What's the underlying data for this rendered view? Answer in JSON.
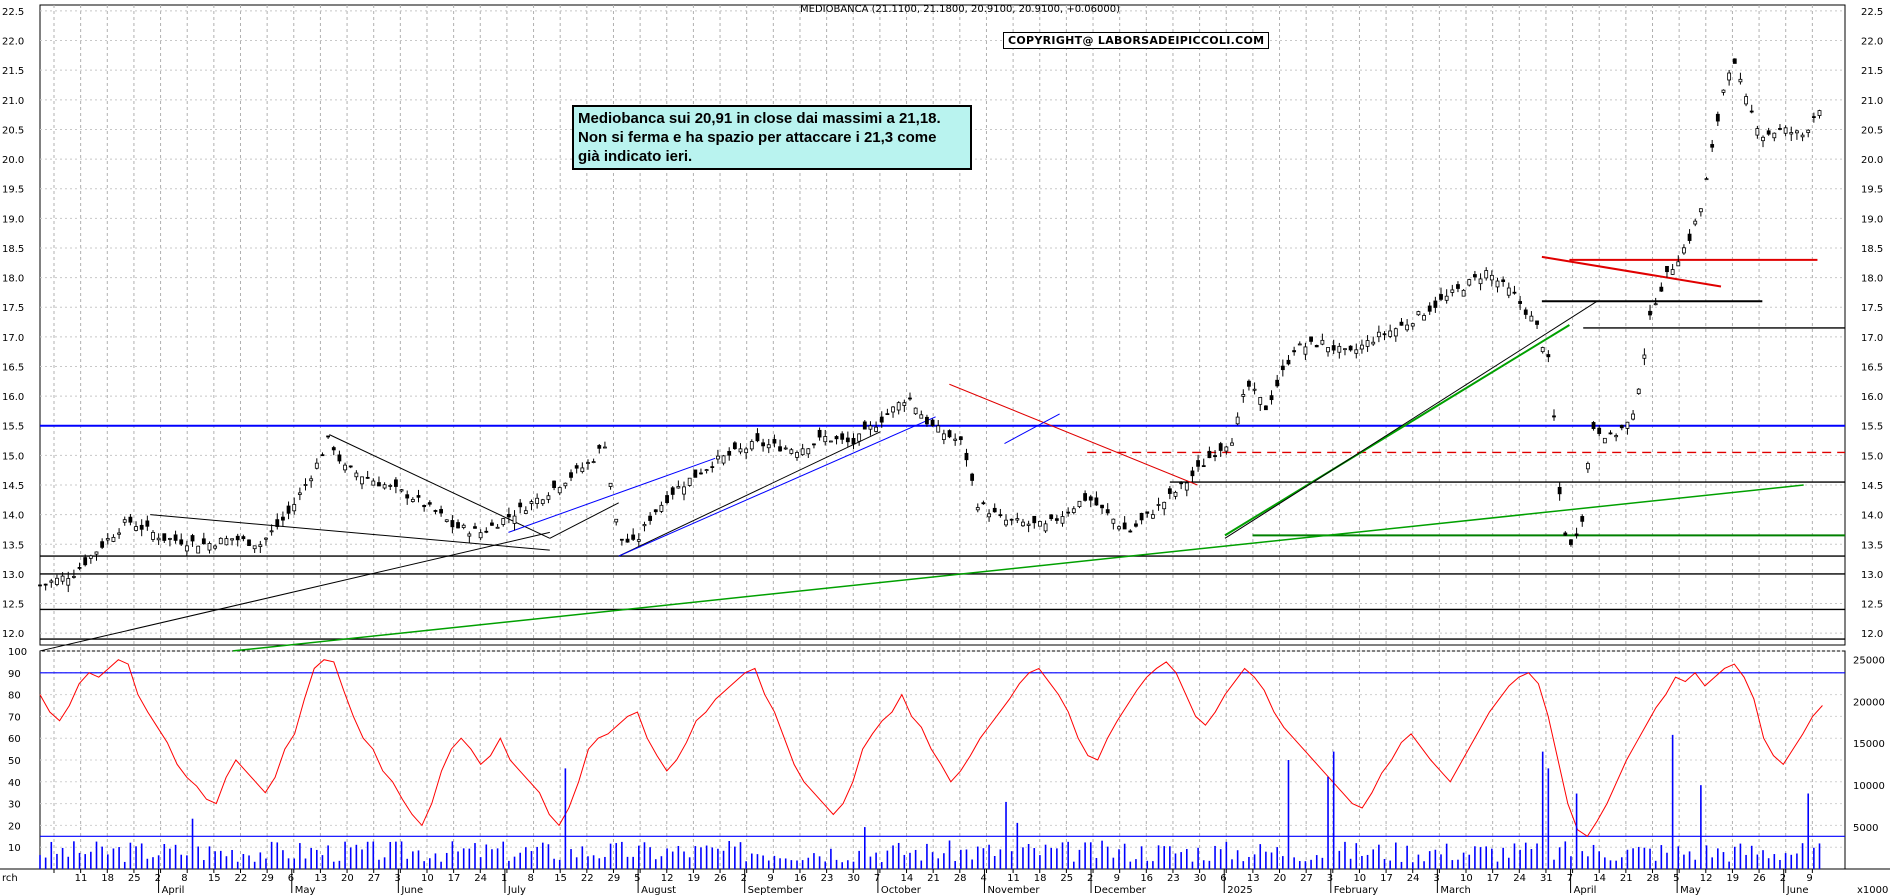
{
  "header": {
    "quote_line": "MEDIOBANCA (21.1100, 21.1800, 20.9100, 20.9100, +0.06000)",
    "copyright": "COPYRIGHT@ LABORSADEIPICCOLI.COM"
  },
  "annotation": {
    "text": "Mediobanca sui 20,91 in close dai massimi a 21,18.\nNon si ferma e ha spazio per attaccare i 21,3 come\ngià indicato ieri."
  },
  "chart_data": [
    {
      "type": "candlestick",
      "panel": "price",
      "title": "MEDIOBANCA (21.1100, 21.1800, 20.9100, 20.9100, +0.06000)",
      "ylim": [
        11.8,
        22.6
      ],
      "y_ticks": [
        "12.0",
        "12.5",
        "13.0",
        "13.5",
        "14.0",
        "14.5",
        "15.0",
        "15.5",
        "16.0",
        "16.5",
        "17.0",
        "17.5",
        "18.0",
        "18.5",
        "19.0",
        "19.5",
        "20.0",
        "20.5",
        "21.0",
        "21.5",
        "22.0",
        "22.5"
      ],
      "x_range_days": [
        0,
        447
      ],
      "close_path": [
        [
          0,
          12.8
        ],
        [
          12,
          13.0
        ],
        [
          25,
          13.6
        ],
        [
          32,
          13.9
        ],
        [
          45,
          13.6
        ],
        [
          60,
          13.5
        ],
        [
          70,
          13.6
        ],
        [
          80,
          13.5
        ],
        [
          90,
          14.0
        ],
        [
          100,
          14.8
        ],
        [
          105,
          15.3
        ],
        [
          110,
          14.8
        ],
        [
          125,
          14.5
        ],
        [
          135,
          14.3
        ],
        [
          145,
          14.0
        ],
        [
          150,
          13.8
        ],
        [
          160,
          13.7
        ],
        [
          175,
          14.1
        ],
        [
          185,
          14.4
        ],
        [
          200,
          14.9
        ],
        [
          205,
          15.2
        ],
        [
          210,
          13.6
        ],
        [
          216,
          13.5
        ],
        [
          222,
          14.0
        ],
        [
          230,
          14.4
        ],
        [
          245,
          14.9
        ],
        [
          260,
          15.2
        ],
        [
          275,
          15.1
        ],
        [
          285,
          15.3
        ],
        [
          295,
          15.2
        ],
        [
          305,
          15.6
        ],
        [
          315,
          16.0
        ],
        [
          323,
          15.5
        ],
        [
          335,
          15.2
        ],
        [
          340,
          14.2
        ],
        [
          350,
          13.9
        ],
        [
          365,
          13.8
        ],
        [
          380,
          14.3
        ],
        [
          395,
          13.7
        ],
        [
          405,
          14.1
        ],
        [
          415,
          14.5
        ],
        [
          425,
          15.0
        ],
        [
          433,
          15.3
        ],
        [
          438,
          16.2
        ],
        [
          445,
          15.8
        ],
        [
          455,
          16.8
        ],
        [
          465,
          16.9
        ],
        [
          475,
          16.7
        ],
        [
          485,
          17.0
        ],
        [
          495,
          17.2
        ],
        [
          505,
          17.5
        ],
        [
          515,
          17.8
        ],
        [
          525,
          18.1
        ],
        [
          535,
          17.7
        ],
        [
          543,
          17.2
        ],
        [
          548,
          16.5
        ],
        [
          552,
          14.0
        ],
        [
          555,
          13.4
        ],
        [
          560,
          14.0
        ],
        [
          563,
          15.5
        ],
        [
          570,
          15.3
        ],
        [
          578,
          15.6
        ],
        [
          585,
          17.5
        ],
        [
          590,
          18.0
        ],
        [
          598,
          18.6
        ],
        [
          603,
          19.2
        ],
        [
          607,
          20.2
        ],
        [
          611,
          21.2
        ],
        [
          614,
          21.7
        ],
        [
          619,
          21.0
        ],
        [
          625,
          20.4
        ],
        [
          632,
          20.5
        ],
        [
          640,
          20.4
        ],
        [
          645,
          20.85
        ],
        [
          647,
          20.91
        ]
      ],
      "horizontal_levels": [
        {
          "y": 15.5,
          "color": "#0000ff",
          "style": "solid"
        },
        {
          "y": 15.05,
          "color": "#e00000",
          "style": "dashed"
        },
        {
          "y": 14.55,
          "color": "#000000",
          "style": "solid"
        },
        {
          "y": 13.65,
          "color": "#008000",
          "style": "solid"
        },
        {
          "y": 13.3,
          "color": "#000000",
          "style": "solid"
        },
        {
          "y": 13.0,
          "color": "#000000",
          "style": "solid"
        },
        {
          "y": 12.4,
          "color": "#000000",
          "style": "solid"
        },
        {
          "y": 11.9,
          "color": "#000000",
          "style": "solid"
        },
        {
          "y": 17.15,
          "color": "#000000",
          "style": "solid"
        },
        {
          "y": 17.6,
          "color": "#000000",
          "style": "solid"
        },
        {
          "y": 18.3,
          "color": "#e00000",
          "style": "solid"
        }
      ]
    },
    {
      "type": "line",
      "panel": "oscillator",
      "ylim": [
        0,
        100
      ],
      "y_ticks": [
        "10",
        "20",
        "30",
        "40",
        "50",
        "60",
        "70",
        "80",
        "90",
        "100"
      ],
      "reference_levels": [
        90,
        15
      ],
      "series": [
        {
          "values": [
            80,
            72,
            68,
            75,
            85,
            90,
            88,
            92,
            96,
            94,
            80,
            72,
            65,
            58,
            48,
            42,
            38,
            32,
            30,
            42,
            50,
            45,
            40,
            35,
            42,
            55,
            62,
            78,
            92,
            96,
            95,
            82,
            70,
            60,
            55,
            45,
            40,
            32,
            25,
            20,
            30,
            45,
            55,
            60,
            55,
            48,
            52,
            60,
            50,
            45,
            40,
            35,
            25,
            20,
            28,
            40,
            55,
            60,
            62,
            66,
            70,
            72,
            60,
            52,
            45,
            50,
            58,
            68,
            72,
            78,
            82,
            86,
            90,
            92,
            80,
            72,
            60,
            48,
            40,
            35,
            30,
            25,
            30,
            40,
            55,
            62,
            68,
            72,
            80,
            70,
            65,
            55,
            48,
            40,
            45,
            52,
            60,
            66,
            72,
            78,
            85,
            90,
            92,
            86,
            80,
            72,
            60,
            52,
            50,
            60,
            68,
            75,
            82,
            88,
            92,
            95,
            90,
            80,
            70,
            66,
            72,
            80,
            86,
            92,
            88,
            82,
            72,
            65,
            60,
            55,
            50,
            45,
            40,
            35,
            30,
            28,
            35,
            44,
            50,
            58,
            62,
            56,
            50,
            45,
            40,
            48,
            56,
            64,
            72,
            78,
            84,
            88,
            90,
            85,
            70,
            50,
            30,
            18,
            15,
            22,
            30,
            40,
            50,
            58,
            66,
            74,
            80,
            88,
            86,
            90,
            84,
            88,
            92,
            94,
            88,
            78,
            60,
            52,
            48,
            55,
            62,
            70,
            75
          ]
        }
      ]
    },
    {
      "type": "bar",
      "panel": "volume",
      "y_ticks": [
        "5000",
        "10000",
        "15000",
        "20000",
        "25000"
      ],
      "unit_label": "x1000",
      "ylim": [
        0,
        26000
      ],
      "spike_days": [
        [
          55,
          6000
        ],
        [
          190,
          12000
        ],
        [
          300,
          5000
        ],
        [
          350,
          8000
        ],
        [
          355,
          5500
        ],
        [
          454,
          13000
        ],
        [
          467,
          11000
        ],
        [
          470,
          14000
        ],
        [
          545,
          14000
        ],
        [
          548,
          12000
        ],
        [
          557,
          9000
        ],
        [
          593,
          16000
        ],
        [
          603,
          10000
        ],
        [
          641,
          9000
        ]
      ]
    }
  ],
  "x_axis": {
    "day_labels": [
      "rch",
      "11",
      "18",
      "25",
      "2",
      "8",
      "15",
      "22",
      "29",
      "6",
      "13",
      "20",
      "27",
      "3",
      "10",
      "17",
      "24",
      "1",
      "8",
      "15",
      "22",
      "29",
      "5",
      "12",
      "19",
      "26",
      "2",
      "9",
      "16",
      "23",
      "30",
      "7",
      "14",
      "21",
      "28",
      "4",
      "11",
      "18",
      "25",
      "2",
      "9",
      "16",
      "23",
      "30",
      "6",
      "13",
      "20",
      "27",
      "3",
      "10",
      "17",
      "24",
      "3",
      "10",
      "17",
      "24",
      "31",
      "7",
      "14",
      "21",
      "28",
      "5",
      "12",
      "19",
      "26",
      "2",
      "9"
    ],
    "month_labels": [
      "April",
      "May",
      "June",
      "July",
      "August",
      "September",
      "October",
      "November",
      "December",
      "2025",
      "February",
      "March",
      "April",
      "May",
      "June"
    ]
  },
  "colors": {
    "candle": "#000000",
    "resistance_blue": "#0000ff",
    "trend_green": "#00a000",
    "trend_red": "#e00000",
    "oscillator": "#ff0000",
    "volume": "#0000ff",
    "note_fill": "#b9f3ef"
  }
}
